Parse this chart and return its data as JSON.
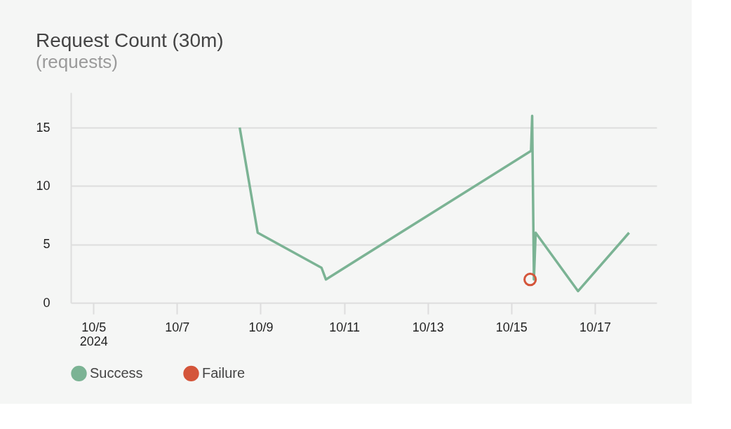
{
  "chart_data": {
    "type": "line",
    "title": "Request Count (30m)",
    "subtitle": "(requests)",
    "series": [
      {
        "name": "Success",
        "color": "#7bb394",
        "x": [
          "2024-10-08T12:00",
          "2024-10-08T22:20",
          "2024-10-10T11:00",
          "2024-10-10T13:30",
          "2024-10-15T11:20",
          "2024-10-15T12:00",
          "2024-10-15T13:00",
          "2024-10-15T14:00",
          "2024-10-16T14:20",
          "2024-10-17T19:40"
        ],
        "values": [
          15,
          6,
          3,
          2,
          13,
          16,
          2,
          6,
          1,
          6
        ]
      },
      {
        "name": "Failure",
        "color": "#d4553a",
        "type": "scatter",
        "marker": "circle",
        "x": [
          "2024-10-15T10:50"
        ],
        "values": [
          2
        ]
      }
    ],
    "xlim": [
      "2024-10-04T11:00",
      "2024-10-18T11:30"
    ],
    "xticks": [
      {
        "value": "2024-10-05",
        "label": "10/5\n2024"
      },
      {
        "value": "2024-10-07",
        "label": "10/7"
      },
      {
        "value": "2024-10-09",
        "label": "10/9"
      },
      {
        "value": "2024-10-11",
        "label": "10/11"
      },
      {
        "value": "2024-10-13",
        "label": "10/13"
      },
      {
        "value": "2024-10-15",
        "label": "10/15"
      },
      {
        "value": "2024-10-17",
        "label": "10/17"
      }
    ],
    "ylim": [
      0,
      18
    ],
    "yticks": [
      0,
      5,
      10,
      15
    ],
    "grid": "y",
    "legend": "bottom left",
    "line_style": "solid"
  }
}
